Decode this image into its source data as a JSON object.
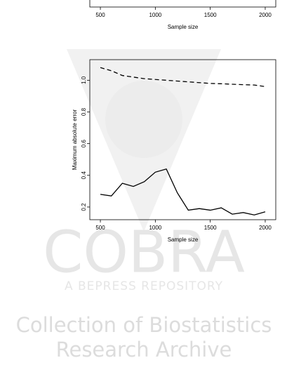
{
  "chart_data": [
    {
      "type": "line",
      "xlabel": "Sample size",
      "xlim": [
        404,
        2096
      ],
      "xticks": [
        500,
        1000,
        1500,
        2000
      ]
    },
    {
      "type": "line",
      "xlabel": "Sample size",
      "ylabel": "Maximum absolute error",
      "xlim": [
        404,
        2096
      ],
      "xticks": [
        500,
        1000,
        1500,
        2000
      ],
      "ylim": [
        0.12,
        1.13
      ],
      "yticks": [
        0.2,
        0.4,
        0.6,
        0.8,
        {
          "value": 1.0,
          "label": "1.0"
        }
      ],
      "x": [
        500,
        600,
        700,
        800,
        900,
        1000,
        1100,
        1200,
        1300,
        1400,
        1500,
        1600,
        1700,
        1800,
        1900,
        2000
      ],
      "series": [
        {
          "color": "#000000",
          "linestyle": "dashed",
          "values": [
            1.08,
            1.06,
            1.03,
            1.02,
            1.01,
            1.005,
            1.0,
            0.995,
            0.99,
            0.985,
            0.98,
            0.978,
            0.975,
            0.972,
            0.97,
            0.96
          ]
        },
        {
          "color": "#000000",
          "linestyle": "solid",
          "values": [
            0.28,
            0.27,
            0.35,
            0.33,
            0.36,
            0.42,
            0.44,
            0.29,
            0.18,
            0.19,
            0.18,
            0.195,
            0.155,
            0.165,
            0.15,
            0.17
          ]
        }
      ]
    }
  ],
  "watermark": {
    "logo": "COBRA",
    "tagline": "A BEPRESS REPOSITORY",
    "line1": "Collection of Biostatistics",
    "line2": "Research Archive"
  }
}
